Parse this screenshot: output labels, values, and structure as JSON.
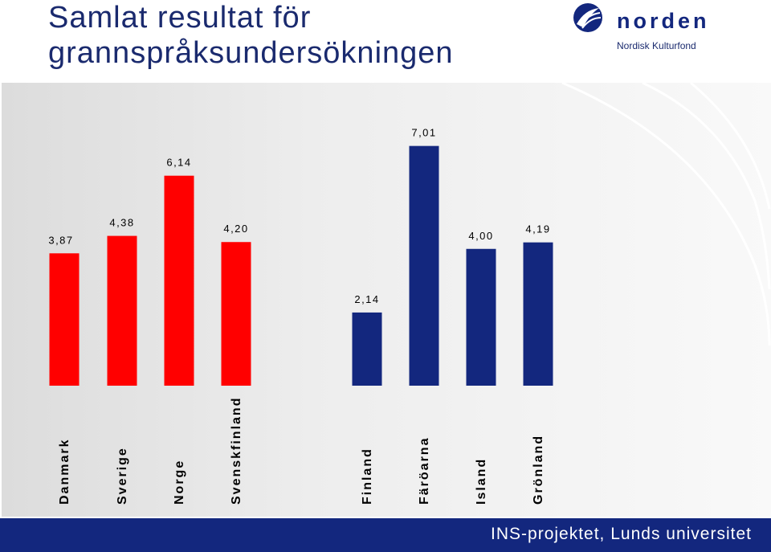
{
  "header": {
    "title_line1": "Samlat resultat för",
    "title_line2": "grannspråksundersökningen"
  },
  "logo": {
    "name": "norden",
    "subtitle": "Nordisk Kulturfond",
    "icon": "norden-swan-icon"
  },
  "footer": {
    "text": "INS-projektet, Lunds universitet"
  },
  "colors": {
    "red": "#ff0000",
    "navy": "#13277e",
    "footer": "#13277e"
  },
  "chart_data": {
    "type": "bar",
    "categories": [
      "Danmark",
      "Sverige",
      "Norge",
      "Svenskfinland",
      "Finland",
      "Färöarna",
      "Island",
      "Grönland"
    ],
    "values": [
      3.87,
      4.38,
      6.14,
      4.2,
      2.14,
      7.01,
      4.0,
      4.19
    ],
    "value_labels": [
      "3,87",
      "4,38",
      "6,14",
      "4,20",
      "2,14",
      "7,01",
      "4,00",
      "4,19"
    ],
    "bar_colors": [
      "#ff0000",
      "#ff0000",
      "#ff0000",
      "#ff0000",
      "#13277e",
      "#13277e",
      "#13277e",
      "#13277e"
    ],
    "title": "",
    "xlabel": "",
    "ylabel": "",
    "ylim": [
      0,
      8.2
    ],
    "grid": false,
    "legend": "none"
  }
}
